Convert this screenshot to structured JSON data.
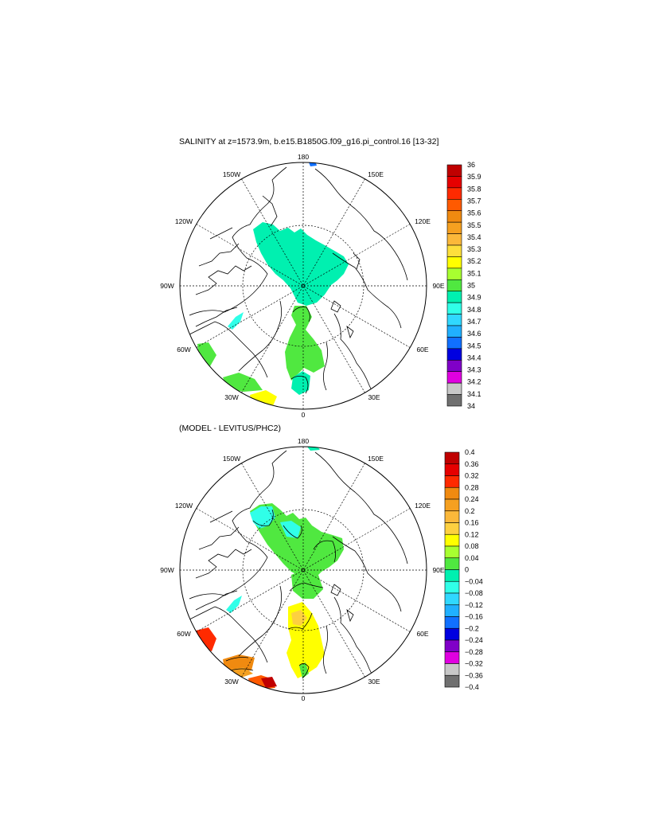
{
  "panels": [
    {
      "title": "SALINITY at z=1573.9m, b.e15.B1850G.f09_g16.pi_control.16 [13-32]",
      "lon_labels": [
        "180",
        "150W",
        "150E",
        "120W",
        "120E",
        "90W",
        "90E",
        "60W",
        "60E",
        "30W",
        "30E",
        "0"
      ],
      "colorbar": {
        "labels": [
          "36",
          "35.9",
          "35.8",
          "35.7",
          "35.6",
          "35.5",
          "35.4",
          "35.3",
          "35.2",
          "35.1",
          "35",
          "34.9",
          "34.8",
          "34.7",
          "34.6",
          "34.5",
          "34.4",
          "34.3",
          "34.2",
          "34.1",
          "34"
        ],
        "colors": [
          "#c00000",
          "#e60000",
          "#ff2a00",
          "#ff5a00",
          "#f08a10",
          "#f5a020",
          "#fbb83a",
          "#fddf3c",
          "#ffff00",
          "#a8ff30",
          "#50e840",
          "#00f0b0",
          "#30ffe8",
          "#30d8ff",
          "#20b0ff",
          "#1070ff",
          "#0000e0",
          "#8000c8",
          "#e000e0",
          "#c8c8c8",
          "#707070"
        ]
      }
    },
    {
      "title": "(MODEL - LEVITUS/PHC2)",
      "lon_labels": [
        "180",
        "150W",
        "150E",
        "120W",
        "120E",
        "90W",
        "90E",
        "60W",
        "60E",
        "30W",
        "30E",
        "0"
      ],
      "colorbar": {
        "labels": [
          "0.4",
          "0.36",
          "0.32",
          "0.28",
          "0.24",
          "0.2",
          "0.16",
          "0.12",
          "0.08",
          "0.04",
          "0",
          "−0.04",
          "−0.08",
          "−0.12",
          "−0.16",
          "−0.2",
          "−0.24",
          "−0.28",
          "−0.32",
          "−0.36",
          "−0.4"
        ],
        "colors": [
          "#c00000",
          "#e60000",
          "#ff2a00",
          "#f08a10",
          "#f5a020",
          "#fbb83a",
          "#fdd040",
          "#ffff00",
          "#a8ff30",
          "#50e840",
          "#00f0b0",
          "#30ffe8",
          "#30d8ff",
          "#20b0ff",
          "#1070ff",
          "#0000e0",
          "#8000c8",
          "#e000e0",
          "#c8c8c8",
          "#707070"
        ]
      }
    }
  ]
}
